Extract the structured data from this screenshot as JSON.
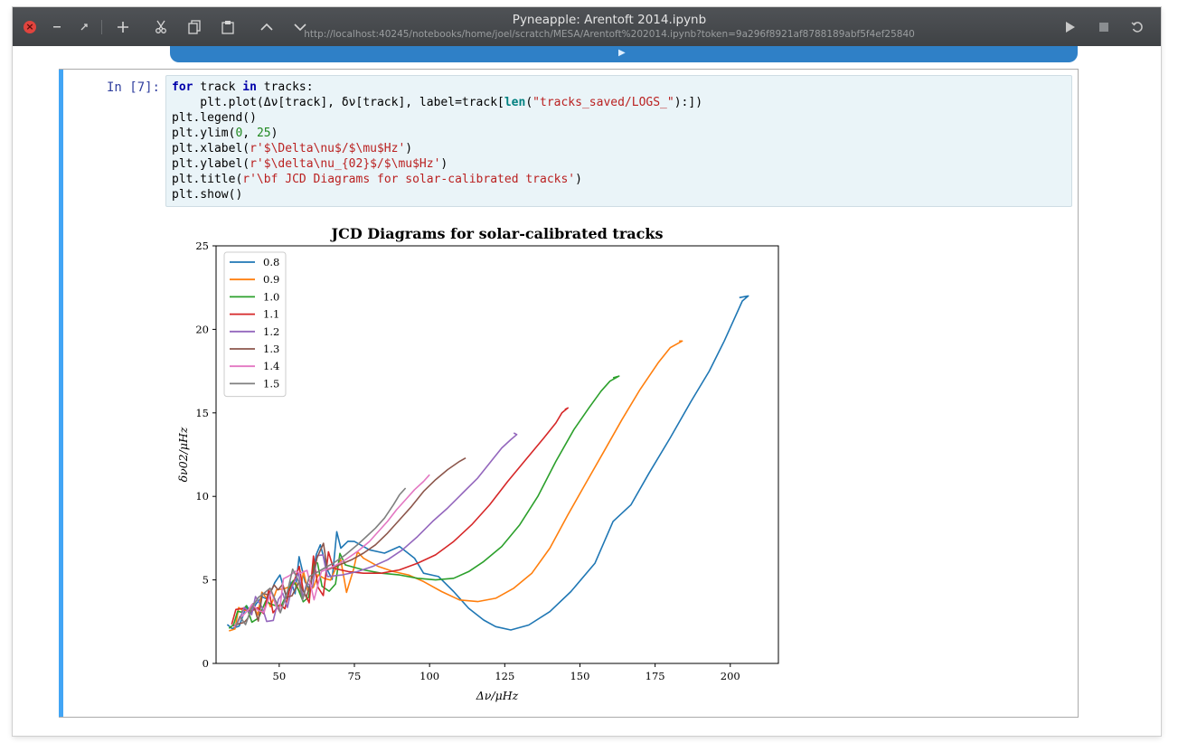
{
  "window": {
    "title": "Pyneapple: Arentoft 2014.ipynb",
    "url": "http://localhost:40245/notebooks/home/joel/scratch/MESA/Arentoft%202014.ipynb?token=9a296f8921af8788189abf5f4ef25840"
  },
  "toolbar": {
    "close_icon": "close-icon",
    "items": [
      "minimize-icon",
      "restore-icon",
      "add-cell-icon",
      "cut-icon",
      "copy-icon",
      "paste-icon",
      "move-up-icon",
      "move-down-icon",
      "run-icon",
      "stop-icon",
      "restart-icon"
    ]
  },
  "cell": {
    "prompt": "In [7]:",
    "code_lines": [
      "for track in tracks:",
      "    plt.plot(Δν[track], δν[track], label=track[len(\"tracks_saved/LOGS_\"):])",
      "plt.legend()",
      "plt.ylim(0, 25)",
      "plt.xlabel(r'$\\Delta\\nu$/$\\mu$Hz')",
      "plt.ylabel(r'$\\delta\\nu_{02}$/$\\mu$Hz')",
      "plt.title(r'\\bf JCD Diagrams for solar-calibrated tracks')",
      "plt.show()"
    ]
  },
  "chart_data": {
    "type": "line",
    "title": "JCD Diagrams for solar-calibrated tracks",
    "xlabel": "Δν/μHz",
    "ylabel": "δν02/μHz",
    "xlim": [
      29,
      216
    ],
    "ylim": [
      0,
      25
    ],
    "xticks": [
      50,
      75,
      100,
      125,
      150,
      175,
      200
    ],
    "yticks": [
      0,
      5,
      10,
      15,
      20,
      25
    ],
    "legend_position": "top-left",
    "grid": false,
    "series": [
      {
        "name": "0.8",
        "color": "#1f77b4",
        "points": [
          [
            75,
            7.3
          ],
          [
            80,
            6.8
          ],
          [
            85,
            6.6
          ],
          [
            90,
            7.0
          ],
          [
            95,
            6.3
          ],
          [
            98,
            5.4
          ],
          [
            103,
            5.2
          ],
          [
            108,
            4.3
          ],
          [
            113,
            3.3
          ],
          [
            118,
            2.6
          ],
          [
            122,
            2.2
          ],
          [
            127,
            2.0
          ],
          [
            133,
            2.3
          ],
          [
            140,
            3.1
          ],
          [
            147,
            4.3
          ],
          [
            155,
            6.0
          ],
          [
            161,
            8.5
          ],
          [
            167,
            9.5
          ],
          [
            173,
            11.4
          ],
          [
            180,
            13.5
          ],
          [
            187,
            15.7
          ],
          [
            193,
            17.5
          ],
          [
            198,
            19.3
          ],
          [
            201,
            20.5
          ],
          [
            204,
            21.7
          ],
          [
            206,
            22.0
          ],
          [
            203,
            21.9
          ]
        ]
      },
      {
        "name": "0.9",
        "color": "#ff7f0e",
        "points": [
          [
            78,
            6.3
          ],
          [
            83,
            5.8
          ],
          [
            88,
            5.5
          ],
          [
            93,
            5.3
          ],
          [
            98,
            4.9
          ],
          [
            104,
            4.3
          ],
          [
            110,
            3.8
          ],
          [
            116,
            3.7
          ],
          [
            122,
            3.9
          ],
          [
            128,
            4.5
          ],
          [
            134,
            5.4
          ],
          [
            140,
            6.9
          ],
          [
            146,
            8.9
          ],
          [
            152,
            10.8
          ],
          [
            158,
            12.7
          ],
          [
            164,
            14.6
          ],
          [
            170,
            16.4
          ],
          [
            176,
            18.0
          ],
          [
            180,
            18.9
          ],
          [
            184,
            19.3
          ],
          [
            183,
            19.3
          ]
        ]
      },
      {
        "name": "1.0",
        "color": "#2ca02c",
        "points": [
          [
            72,
            5.9
          ],
          [
            78,
            5.6
          ],
          [
            84,
            5.4
          ],
          [
            90,
            5.3
          ],
          [
            96,
            5.1
          ],
          [
            102,
            5.0
          ],
          [
            108,
            5.1
          ],
          [
            113,
            5.5
          ],
          [
            118,
            6.1
          ],
          [
            124,
            7.0
          ],
          [
            130,
            8.3
          ],
          [
            136,
            10.0
          ],
          [
            142,
            12.1
          ],
          [
            148,
            14.0
          ],
          [
            153,
            15.3
          ],
          [
            157,
            16.3
          ],
          [
            160,
            16.9
          ],
          [
            163,
            17.2
          ],
          [
            161,
            17.1
          ]
        ]
      },
      {
        "name": "1.1",
        "color": "#d62728",
        "points": [
          [
            68,
            5.7
          ],
          [
            73,
            5.5
          ],
          [
            78,
            5.4
          ],
          [
            84,
            5.4
          ],
          [
            90,
            5.6
          ],
          [
            96,
            6.0
          ],
          [
            102,
            6.5
          ],
          [
            108,
            7.3
          ],
          [
            114,
            8.3
          ],
          [
            120,
            9.5
          ],
          [
            126,
            10.9
          ],
          [
            132,
            12.2
          ],
          [
            138,
            13.5
          ],
          [
            142,
            14.4
          ],
          [
            144,
            15.0
          ],
          [
            146,
            15.3
          ],
          [
            145,
            15.2
          ]
        ]
      },
      {
        "name": "1.2",
        "color": "#9467bd",
        "points": [
          [
            66,
            5.2
          ],
          [
            71,
            5.3
          ],
          [
            76,
            5.5
          ],
          [
            81,
            5.8
          ],
          [
            86,
            6.2
          ],
          [
            91,
            6.8
          ],
          [
            96,
            7.6
          ],
          [
            101,
            8.5
          ],
          [
            106,
            9.3
          ],
          [
            111,
            10.2
          ],
          [
            116,
            11.1
          ],
          [
            120,
            12.0
          ],
          [
            124,
            12.9
          ],
          [
            127,
            13.4
          ],
          [
            129,
            13.7
          ],
          [
            128,
            13.8
          ]
        ]
      },
      {
        "name": "1.3",
        "color": "#8c564b",
        "points": [
          [
            66,
            5.6
          ],
          [
            70,
            5.9
          ],
          [
            74,
            6.2
          ],
          [
            78,
            6.6
          ],
          [
            82,
            7.1
          ],
          [
            86,
            7.8
          ],
          [
            90,
            8.6
          ],
          [
            94,
            9.4
          ],
          [
            98,
            10.3
          ],
          [
            102,
            11.0
          ],
          [
            106,
            11.6
          ],
          [
            110,
            12.1
          ],
          [
            112,
            12.3
          ]
        ]
      },
      {
        "name": "1.4",
        "color": "#e377c2",
        "points": [
          [
            64,
            5.5
          ],
          [
            68,
            5.8
          ],
          [
            72,
            6.2
          ],
          [
            76,
            6.7
          ],
          [
            80,
            7.3
          ],
          [
            83,
            7.9
          ],
          [
            86,
            8.5
          ],
          [
            89,
            9.2
          ],
          [
            92,
            9.8
          ],
          [
            95,
            10.4
          ],
          [
            98,
            10.9
          ],
          [
            100,
            11.3
          ]
        ]
      },
      {
        "name": "1.5",
        "color": "#7f7f7f",
        "points": [
          [
            60,
            5.2
          ],
          [
            64,
            5.6
          ],
          [
            68,
            6.0
          ],
          [
            72,
            6.5
          ],
          [
            76,
            7.1
          ],
          [
            79,
            7.6
          ],
          [
            82,
            8.1
          ],
          [
            85,
            8.7
          ],
          [
            88,
            9.5
          ],
          [
            90,
            10.1
          ],
          [
            92,
            10.5
          ]
        ]
      }
    ]
  }
}
